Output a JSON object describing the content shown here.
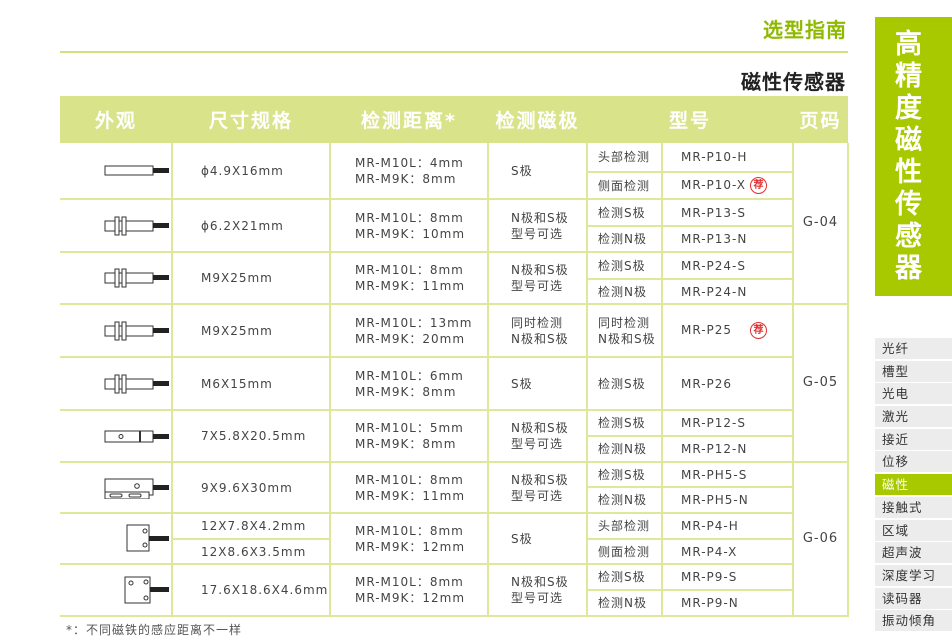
{
  "header": {
    "guide": "选型指南",
    "subtitle": "磁性传感器"
  },
  "table": {
    "columns": [
      "外观",
      "尺寸规格",
      "检测距离*",
      "检测磁极",
      "型号",
      "页码"
    ],
    "groups": [
      {
        "icon": "cylinder-plain",
        "size": [
          "ϕ4.9X16mm"
        ],
        "distance": [
          "MR-M10L：4mm",
          "MR-M9K：8mm"
        ],
        "pole": "S极",
        "models": [
          {
            "type": "头部检测",
            "model": "MR-P10-H"
          },
          {
            "type": "侧面检测",
            "model": "MR-P10-X",
            "recommended": true
          }
        ],
        "page": "G-04",
        "page_span": 3
      },
      {
        "icon": "cylinder-nut",
        "size": [
          "ϕ6.2X21mm"
        ],
        "distance": [
          "MR-M10L：8mm",
          "MR-M9K：10mm"
        ],
        "pole": "N极和S极\n型号可选",
        "models": [
          {
            "type": "检测S极",
            "model": "MR-P13-S"
          },
          {
            "type": "检测N极",
            "model": "MR-P13-N"
          }
        ]
      },
      {
        "icon": "cylinder-nut",
        "size": [
          "M9X25mm"
        ],
        "distance": [
          "MR-M10L：8mm",
          "MR-M9K：11mm"
        ],
        "pole": "N极和S极\n型号可选",
        "models": [
          {
            "type": "检测S极",
            "model": "MR-P24-S"
          },
          {
            "type": "检测N极",
            "model": "MR-P24-N"
          }
        ]
      },
      {
        "icon": "cylinder-nut",
        "size": [
          "M9X25mm"
        ],
        "distance": [
          "MR-M10L：13mm",
          "MR-M9K：20mm"
        ],
        "pole": "同时检测\nN极和S极",
        "models": [
          {
            "type": "同时检测\nN极和S极",
            "model": "MR-P25",
            "recommended": true
          }
        ],
        "page": "G-05",
        "page_span": 3
      },
      {
        "icon": "cylinder-nut",
        "size": [
          "M6X15mm"
        ],
        "distance": [
          "MR-M10L：6mm",
          "MR-M9K：8mm"
        ],
        "pole": "S极",
        "models": [
          {
            "type": "检测S极",
            "model": "MR-P26"
          }
        ]
      },
      {
        "icon": "block-hole",
        "size": [
          "7X5.8X20.5mm"
        ],
        "distance": [
          "MR-M10L：5mm",
          "MR-M9K：8mm"
        ],
        "pole": "N极和S极\n型号可选",
        "models": [
          {
            "type": "检测S极",
            "model": "MR-P12-S"
          },
          {
            "type": "检测N极",
            "model": "MR-P12-N"
          }
        ]
      },
      {
        "icon": "block-slotted",
        "size": [
          "9X9.6X30mm"
        ],
        "distance": [
          "MR-M10L：8mm",
          "MR-M9K：11mm"
        ],
        "pole": "N极和S极\n型号可选",
        "models": [
          {
            "type": "检测S极",
            "model": "MR-PH5-S"
          },
          {
            "type": "检测N极",
            "model": "MR-PH5-N"
          }
        ],
        "page": "G-06",
        "page_span": 3
      },
      {
        "icon": "square-small",
        "size": [
          "12X7.8X4.2mm",
          "12X8.6X3.5mm"
        ],
        "distance": [
          "MR-M10L：8mm",
          "MR-M9K：12mm"
        ],
        "pole": "S极",
        "models": [
          {
            "type": "头部检测",
            "model": "MR-P4-H"
          },
          {
            "type": "侧面检测",
            "model": "MR-P4-X"
          }
        ]
      },
      {
        "icon": "square-large",
        "size": [
          "17.6X18.6X4.6mm"
        ],
        "distance": [
          "MR-M10L：8mm",
          "MR-M9K：12mm"
        ],
        "pole": "N极和S极\n型号可选",
        "models": [
          {
            "type": "检测S极",
            "model": "MR-P9-S"
          },
          {
            "type": "检测N极",
            "model": "MR-P9-N"
          }
        ]
      }
    ],
    "recommend_badge": "荐",
    "recommend_color": "#e03030"
  },
  "note": "*：不同磁铁的感应距离不一样",
  "sidebar": {
    "title": "高精度磁性传感器",
    "nav": [
      "光纤",
      "槽型",
      "光电",
      "激光",
      "接近",
      "位移",
      "磁性",
      "接触式",
      "区域",
      "超声波",
      "深度学习",
      "读码器",
      "振动倾角"
    ],
    "active": "磁性",
    "accent": "#a8c800"
  }
}
